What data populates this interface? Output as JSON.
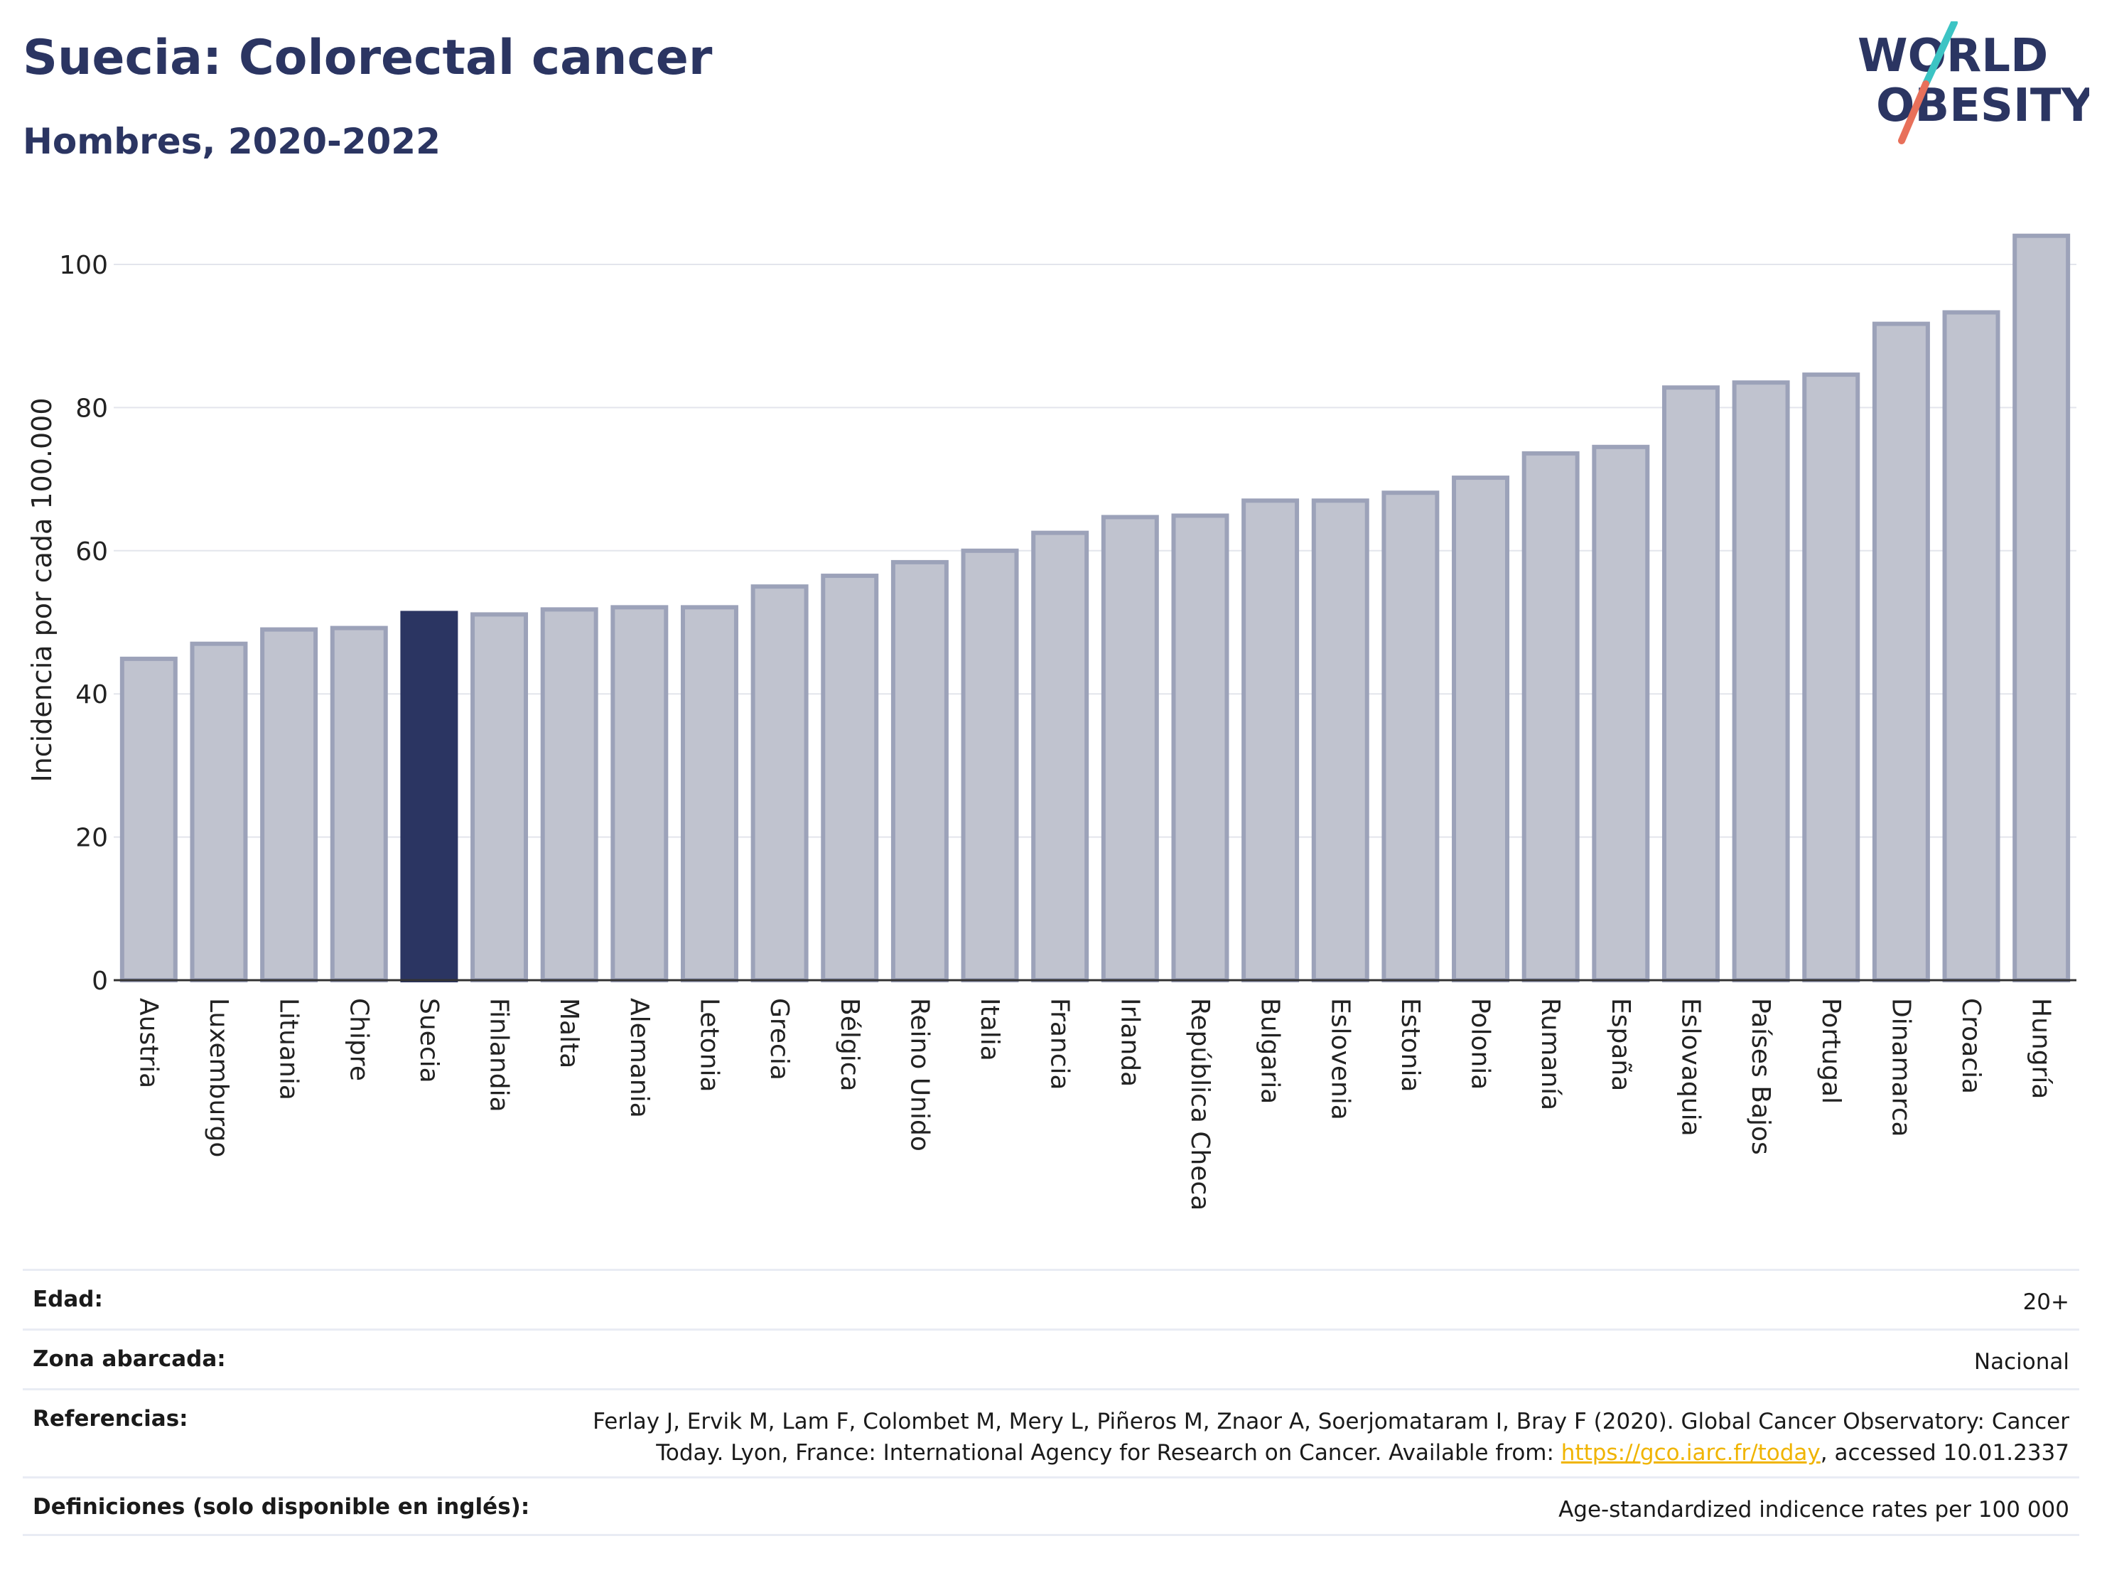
{
  "header": {
    "title": "Suecia: Colorectal cancer",
    "subtitle": "Hombres, 2020-2022"
  },
  "logo": {
    "line1": "WORLD",
    "line2": "OBESITY",
    "colors": {
      "text": "#2b3562",
      "slash_teal": "#3cc4c4",
      "slash_coral": "#e8705a"
    }
  },
  "chart_data": {
    "type": "bar",
    "ylabel": "Incidencia por cada 100.000",
    "ylim": [
      0,
      108
    ],
    "yticks": [
      0,
      20,
      40,
      60,
      80,
      100
    ],
    "grid": true,
    "categories": [
      "Austria",
      "Luxemburgo",
      "Lituania",
      "Chipre",
      "Suecia",
      "Finlandia",
      "Malta",
      "Alemania",
      "Letonia",
      "Grecia",
      "Bélgica",
      "Reino Unido",
      "Italia",
      "Francia",
      "Irlanda",
      "República Checa",
      "Bulgaria",
      "Eslovenia",
      "Estonia",
      "Polonia",
      "Rumanía",
      "España",
      "Eslovaquia",
      "Países Bajos",
      "Portugal",
      "Dinamarca",
      "Croacia",
      "Hungría"
    ],
    "values": [
      44.9,
      47.0,
      49.0,
      49.2,
      51.3,
      51.1,
      51.8,
      52.1,
      52.1,
      55.0,
      56.5,
      58.4,
      60.0,
      62.5,
      64.7,
      64.9,
      67.0,
      67.0,
      68.1,
      70.2,
      73.6,
      74.5,
      82.8,
      83.5,
      84.6,
      91.7,
      93.3,
      104.0
    ],
    "highlight": "Suecia",
    "colors": {
      "bar": "#c0c3cf",
      "bar_edge": "#9ca2b9",
      "highlight": "#2b3562",
      "grid": "#e3e5ec",
      "axis": "#333333"
    }
  },
  "meta": {
    "edad_label": "Edad:",
    "edad_value": "20+",
    "zona_label": "Zona abarcada:",
    "zona_value": "Nacional",
    "ref_label": "Referencias:",
    "ref_text_1": "Ferlay J, Ervik M, Lam F, Colombet M, Mery L, Piñeros M, Znaor A, Soerjomataram I, Bray F (2020). Global Cancer Observatory: Cancer",
    "ref_text_2a": "Today. Lyon, France: International Agency for Research on Cancer. Available from: ",
    "ref_link": "https://gco.iarc.fr/today",
    "ref_text_2b": ", accessed 10.01.2337",
    "def_label": "Definiciones (solo disponible en inglés):",
    "def_value": "Age-standardized indicence rates per 100 000"
  }
}
